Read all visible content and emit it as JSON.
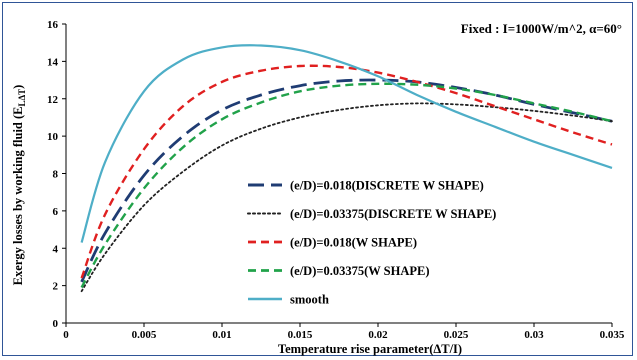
{
  "chart_data": {
    "type": "line",
    "xlabel": "Temperature rise parameter(ΔT/I)",
    "ylabel": "Exergy losses by working fluid (E",
    "ylabel_sub": "LΔT",
    "ylabel_end": ")",
    "annotation": "Fixed : I=1000W/m^2, α=60°",
    "xlim": [
      0,
      0.035
    ],
    "ylim": [
      0,
      16
    ],
    "xticks": [
      "0",
      "0.005",
      "0.01",
      "0.015",
      "0.02",
      "0.025",
      "0.03",
      "0.035"
    ],
    "yticks": [
      "0",
      "2",
      "4",
      "6",
      "8",
      "10",
      "12",
      "14",
      "16"
    ],
    "grid": false,
    "legend_position": "center-left",
    "x": [
      0.001,
      0.0025,
      0.005,
      0.0075,
      0.01,
      0.0125,
      0.015,
      0.0175,
      0.02,
      0.0225,
      0.025,
      0.0275,
      0.03,
      0.0325,
      0.035
    ],
    "series": [
      {
        "name": "(e/D)=0.018(DISCRETE W SHAPE)",
        "color": "#1f3c73",
        "dash": "long",
        "values": [
          2.2,
          4.8,
          7.9,
          10.0,
          11.4,
          12.2,
          12.7,
          12.95,
          13.0,
          12.9,
          12.6,
          12.2,
          11.7,
          11.25,
          10.8
        ]
      },
      {
        "name": "(e/D)=0.03375(DISCRETE W SHAPE)",
        "color": "#222222",
        "dash": "dot",
        "values": [
          1.7,
          3.7,
          6.3,
          8.1,
          9.5,
          10.4,
          11.0,
          11.4,
          11.65,
          11.75,
          11.7,
          11.55,
          11.35,
          11.1,
          10.8
        ]
      },
      {
        "name": "(e/D)=0.018(W SHAPE)",
        "color": "#e02020",
        "dash": "medium",
        "values": [
          2.4,
          5.8,
          9.3,
          11.6,
          12.9,
          13.5,
          13.75,
          13.7,
          13.4,
          12.9,
          12.3,
          11.6,
          10.9,
          10.2,
          9.55
        ]
      },
      {
        "name": "(e/D)=0.03375(W SHAPE)",
        "color": "#21a24a",
        "dash": "medium",
        "values": [
          1.9,
          4.2,
          7.2,
          9.4,
          10.9,
          11.8,
          12.4,
          12.7,
          12.8,
          12.75,
          12.55,
          12.2,
          11.75,
          11.3,
          10.8
        ]
      },
      {
        "name": "smooth",
        "color": "#4eaec7",
        "dash": "solid",
        "values": [
          4.3,
          8.6,
          12.4,
          14.1,
          14.75,
          14.85,
          14.6,
          14.0,
          13.2,
          12.2,
          11.3,
          10.5,
          9.7,
          9.0,
          8.3
        ]
      }
    ]
  }
}
